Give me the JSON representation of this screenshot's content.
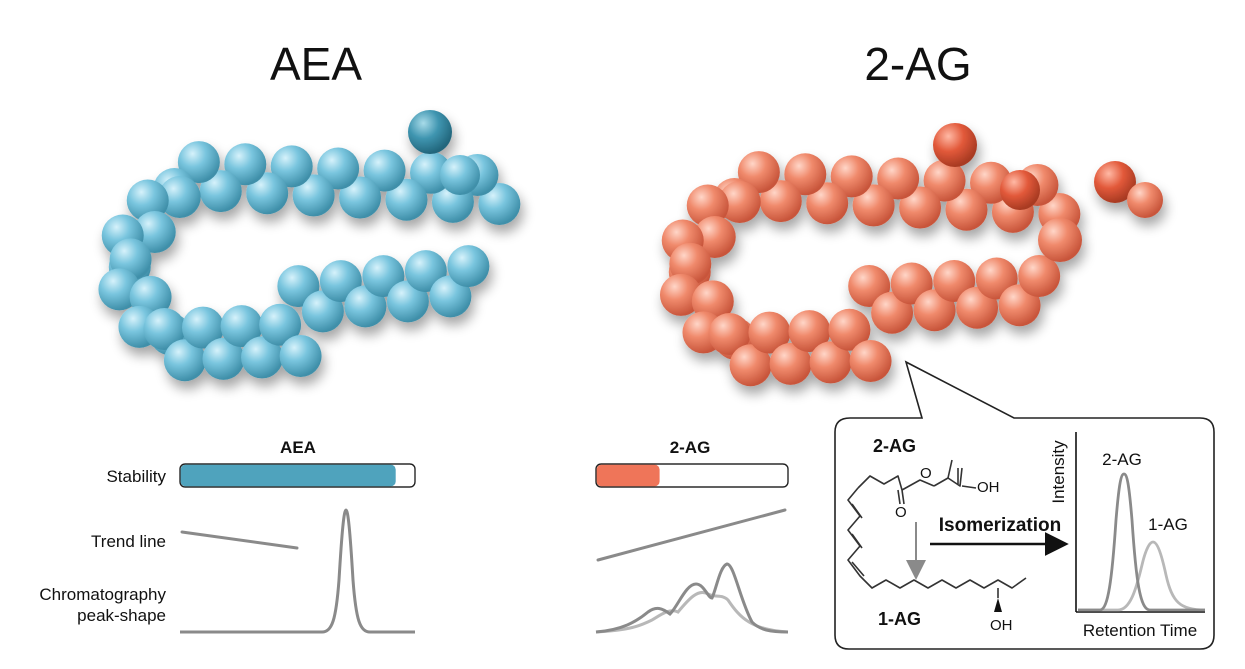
{
  "titles": {
    "left": "AEA",
    "right": "2-AG"
  },
  "row_labels": {
    "stability": "Stability",
    "trend": "Trend line",
    "chrom_line1": "Chromatography",
    "chrom_line2": "peak-shape"
  },
  "bars": {
    "aea": {
      "label": "AEA",
      "fill_fraction": 0.92,
      "color": "#4fa3bd"
    },
    "twoag": {
      "label": "2-AG",
      "fill_fraction": 0.33,
      "color": "#ef7559"
    }
  },
  "inset": {
    "top_label": "2-AG",
    "bottom_label": "1-AG",
    "o_ester": "O",
    "o_carbonyl": "O",
    "oh_top": "OH",
    "oh_bottom": "OH",
    "arrow_label": "Isomerization",
    "y_axis": "Intensity",
    "x_axis": "Retention Time",
    "peak_2ag": "2-AG",
    "peak_1ag": "1-AG"
  },
  "colors": {
    "aea": "#5fb4cf",
    "twoag": "#ef7a5f",
    "line_gray": "#8a8a8a",
    "line_light": "#b8b8b8"
  }
}
